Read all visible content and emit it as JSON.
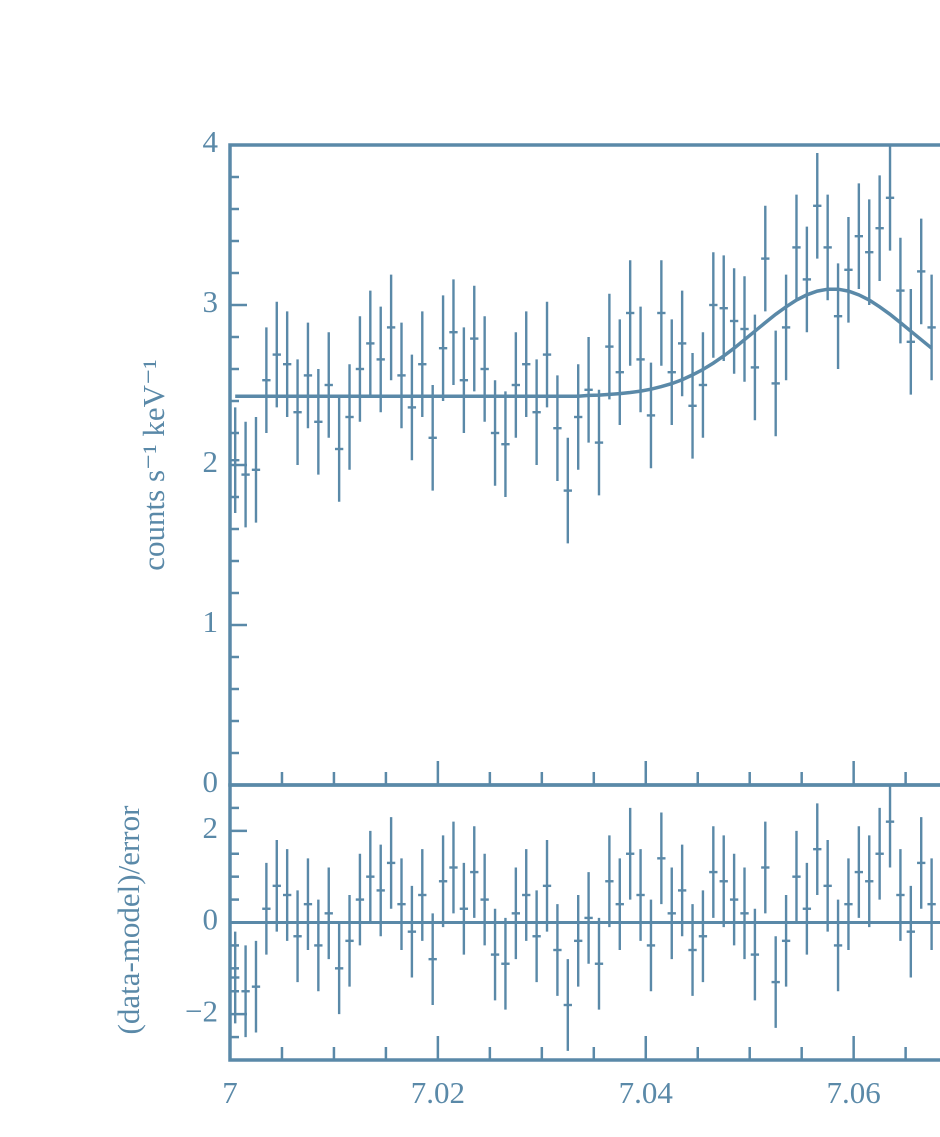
{
  "chart_data": [
    {
      "type": "errorbar",
      "ylabel": "counts s⁻¹ keV⁻¹",
      "color": "#5a89a8",
      "x": [
        7.0005,
        7.0015,
        7.0025,
        7.0035,
        7.0045,
        7.0055,
        7.0065,
        7.0075,
        7.0085,
        7.0095,
        7.0105,
        7.0115,
        7.0125,
        7.0135,
        7.0145,
        7.0155,
        7.0165,
        7.0175,
        7.0185,
        7.0195,
        7.0205,
        7.0215,
        7.0225,
        7.0235,
        7.0245,
        7.0255,
        7.0265,
        7.0275,
        7.0285,
        7.0295,
        7.0305,
        7.0315,
        7.0325,
        7.0335,
        7.0345,
        7.0355,
        7.0365,
        7.0375,
        7.0385,
        7.0395,
        7.0405,
        7.0415,
        7.0425,
        7.0435,
        7.0445,
        7.0455,
        7.0465,
        7.0475,
        7.0485,
        7.0495,
        7.0505,
        7.0515,
        7.0525,
        7.0535,
        7.0545,
        7.0555,
        7.0565,
        7.0575,
        7.0585,
        7.0595,
        7.0605,
        7.0615,
        7.0625,
        7.0635,
        7.0645,
        7.0655,
        7.0665,
        7.0675
      ],
      "values": [
        2.03,
        1.94,
        1.97,
        2.53,
        2.69,
        2.63,
        2.33,
        2.56,
        2.27,
        2.5,
        2.1,
        2.3,
        2.6,
        2.76,
        2.66,
        2.86,
        2.56,
        2.36,
        2.63,
        2.17,
        2.73,
        2.83,
        2.53,
        2.79,
        2.6,
        2.2,
        2.13,
        2.5,
        2.63,
        2.33,
        2.69,
        2.23,
        1.84,
        2.3,
        2.47,
        2.14,
        2.74,
        2.58,
        2.95,
        2.66,
        2.31,
        2.95,
        2.58,
        2.76,
        2.37,
        2.5,
        3.0,
        2.98,
        2.9,
        2.85,
        2.61,
        3.29,
        2.51,
        2.86,
        3.36,
        3.16,
        3.62,
        3.36,
        2.93,
        3.22,
        3.43,
        3.33,
        3.48,
        3.67,
        3.09,
        2.77,
        3.21,
        2.86
      ],
      "error": 0.33,
      "model": [
        2.43,
        2.43,
        2.43,
        2.43,
        2.43,
        2.43,
        2.43,
        2.43,
        2.43,
        2.43,
        2.43,
        2.43,
        2.43,
        2.43,
        2.43,
        2.43,
        2.43,
        2.43,
        2.43,
        2.43,
        2.43,
        2.43,
        2.43,
        2.43,
        2.43,
        2.43,
        2.43,
        2.43,
        2.43,
        2.43,
        2.43,
        2.43,
        2.43,
        2.43,
        2.435,
        2.437,
        2.441,
        2.446,
        2.453,
        2.462,
        2.474,
        2.49,
        2.509,
        2.533,
        2.563,
        2.597,
        2.637,
        2.681,
        2.73,
        2.783,
        2.836,
        2.89,
        2.942,
        2.989,
        3.031,
        3.064,
        3.087,
        3.099,
        3.099,
        3.087,
        3.064,
        3.031,
        2.989,
        2.942,
        2.89,
        2.836,
        2.783,
        2.73
      ],
      "xlim": [
        7,
        7.0685
      ],
      "xticks": [
        7,
        7.02,
        7.04,
        7.06
      ],
      "minor_xticks": [
        7.005,
        7.01,
        7.015,
        7.025,
        7.03,
        7.035,
        7.045,
        7.05,
        7.055,
        7.065
      ],
      "ylim": [
        0,
        4
      ],
      "yticks": [
        0,
        1,
        2,
        3,
        4
      ],
      "minor_yticks": [
        0.2,
        0.4,
        0.6,
        0.8,
        1.2,
        1.4,
        1.6,
        1.8,
        2.2,
        2.4,
        2.6,
        2.8,
        3.2,
        3.4,
        3.6,
        3.8
      ]
    },
    {
      "type": "residual",
      "ylabel": "(data-model)/error",
      "color": "#5a89a8",
      "values": [
        -1.2,
        -1.5,
        -1.4,
        0.3,
        0.8,
        0.6,
        -0.3,
        0.4,
        -0.5,
        0.2,
        -1.0,
        -0.4,
        0.5,
        1.0,
        0.7,
        1.3,
        0.4,
        -0.2,
        0.6,
        -0.8,
        0.9,
        1.2,
        0.3,
        1.1,
        0.5,
        -0.7,
        -0.9,
        0.2,
        0.6,
        -0.3,
        0.8,
        -0.6,
        -1.8,
        -0.4,
        0.1,
        -0.9,
        0.9,
        0.4,
        1.5,
        0.6,
        -0.5,
        1.4,
        0.2,
        0.7,
        -0.6,
        -0.3,
        1.1,
        0.9,
        0.5,
        0.2,
        -0.7,
        1.2,
        -1.3,
        -0.4,
        1.0,
        0.3,
        1.6,
        0.8,
        -0.5,
        0.4,
        1.1,
        0.9,
        1.5,
        2.2,
        0.6,
        -0.2,
        1.3,
        0.4
      ],
      "error": 1,
      "xlim": [
        7,
        7.0685
      ],
      "xticks": [
        7,
        7.02,
        7.04,
        7.06
      ],
      "minor_xticks": [
        7.005,
        7.01,
        7.015,
        7.025,
        7.03,
        7.035,
        7.045,
        7.05,
        7.055,
        7.065
      ],
      "ylim": [
        -3,
        3
      ],
      "yticks": [
        {
          "value": -2,
          "label": "−2"
        },
        0,
        2
      ],
      "minor_yticks": [
        -2.5,
        -1.5,
        -1,
        -0.5,
        0.5,
        1,
        1.5,
        2.5
      ]
    }
  ]
}
